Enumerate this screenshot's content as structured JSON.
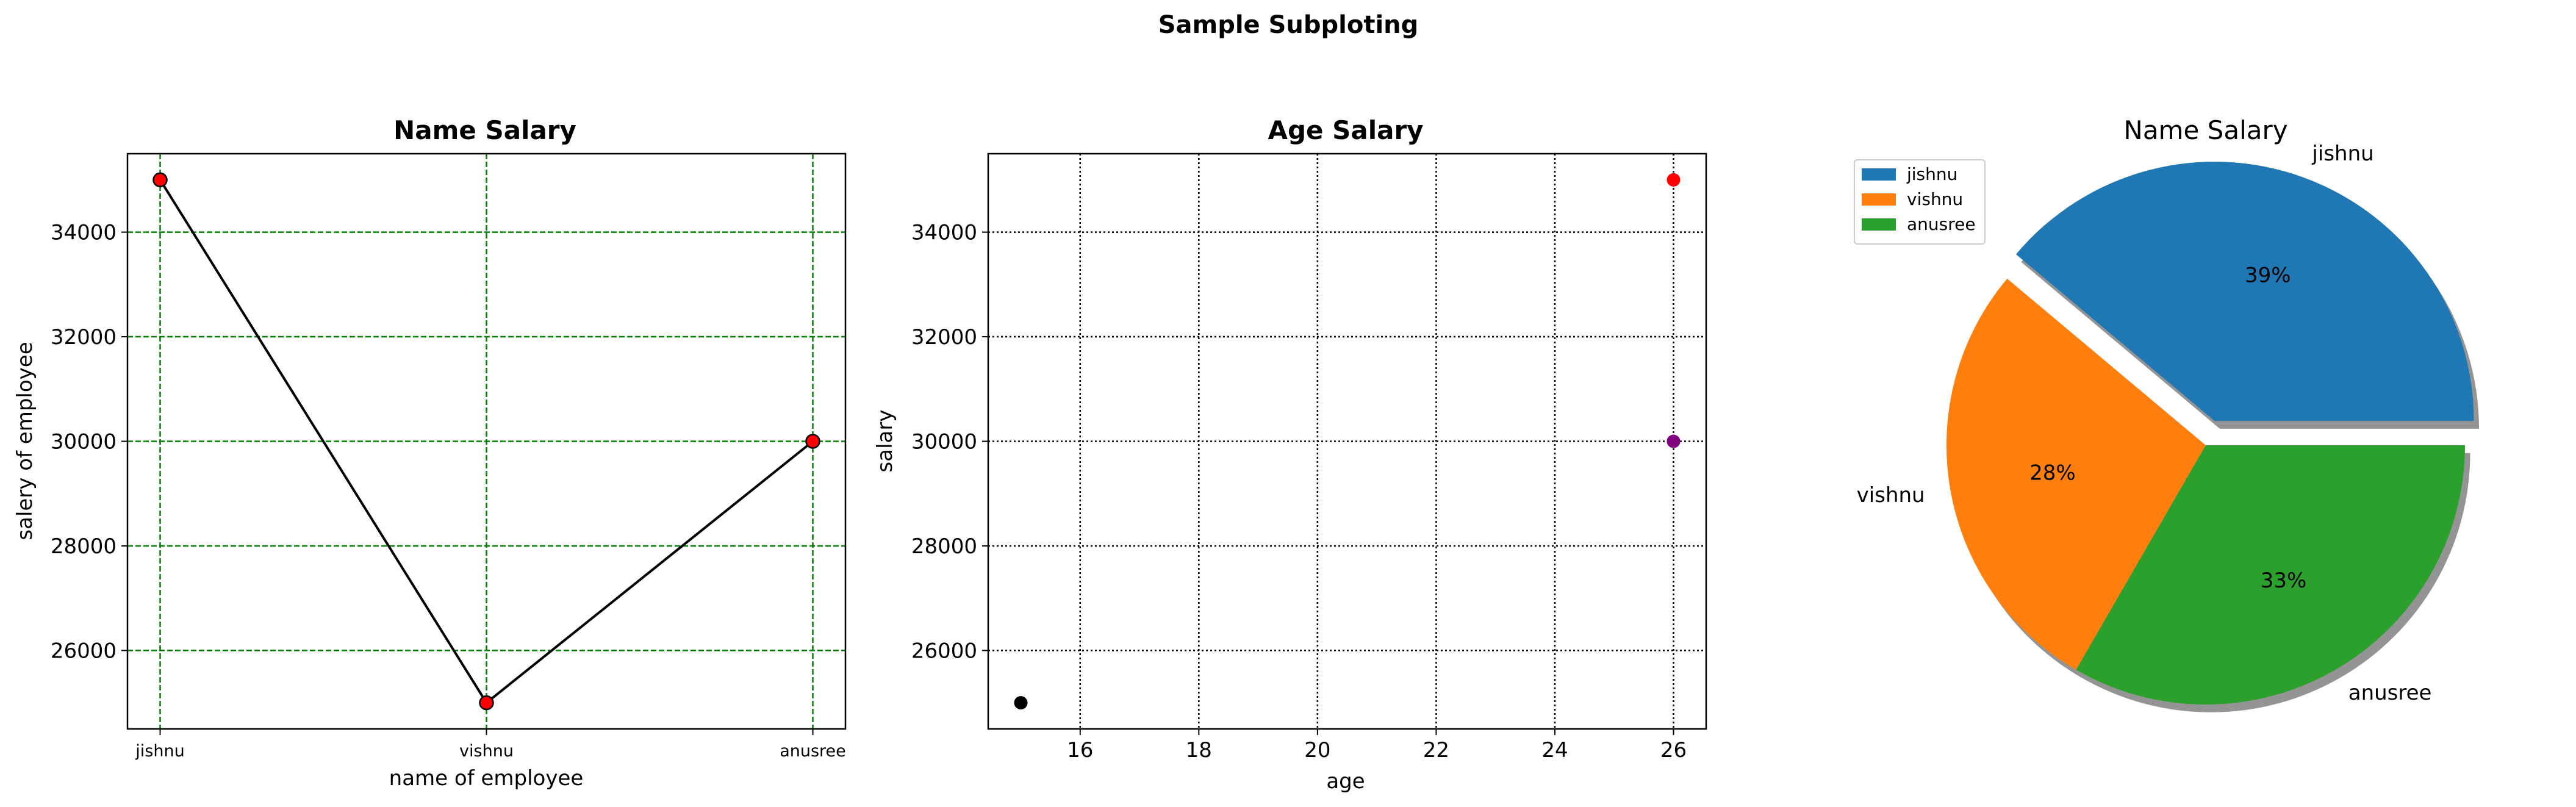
{
  "suptitle": "Sample Subploting",
  "chart_data": [
    {
      "type": "line",
      "title": "Name Salary",
      "xlabel": "name of employee",
      "ylabel": "salery of employee",
      "categories": [
        "jishnu",
        "vishnu",
        "anusree"
      ],
      "values": [
        35000,
        25000,
        30000
      ],
      "ylim": [
        24500,
        35500
      ],
      "yticks": [
        26000,
        28000,
        30000,
        32000,
        34000
      ],
      "ytick_labels": [
        "26000",
        "28000",
        "30000",
        "32000",
        "34000"
      ],
      "grid": "on",
      "colors": {
        "line": "#000000",
        "marker": "#ff0000",
        "grid": "#008000"
      }
    },
    {
      "type": "scatter",
      "title": "Age Salary",
      "xlabel": "age",
      "ylabel": "salary",
      "points": [
        {
          "x": 15,
          "y": 25000,
          "color": "#000000"
        },
        {
          "x": 26,
          "y": 30000,
          "color": "#800080"
        },
        {
          "x": 26,
          "y": 35000,
          "color": "#ff0000"
        }
      ],
      "xlim": [
        14.45,
        26.55
      ],
      "ylim": [
        24500,
        35500
      ],
      "xticks": [
        16,
        18,
        20,
        22,
        24,
        26
      ],
      "xtick_labels": [
        "16",
        "18",
        "20",
        "22",
        "24",
        "26"
      ],
      "yticks": [
        26000,
        28000,
        30000,
        32000,
        34000
      ],
      "ytick_labels": [
        "26000",
        "28000",
        "30000",
        "32000",
        "34000"
      ],
      "grid": "on"
    },
    {
      "type": "pie",
      "title": "Name Salary",
      "labels": [
        "jishnu",
        "vishnu",
        "anusree"
      ],
      "values": [
        35000,
        25000,
        30000
      ],
      "pct_labels": [
        "39%",
        "28%",
        "33%"
      ],
      "colors": [
        "#1f77b4",
        "#ff7f0e",
        "#2ca02c"
      ],
      "explode": [
        0.1,
        0,
        0
      ],
      "shadow": true,
      "legend": "upper-left"
    }
  ]
}
